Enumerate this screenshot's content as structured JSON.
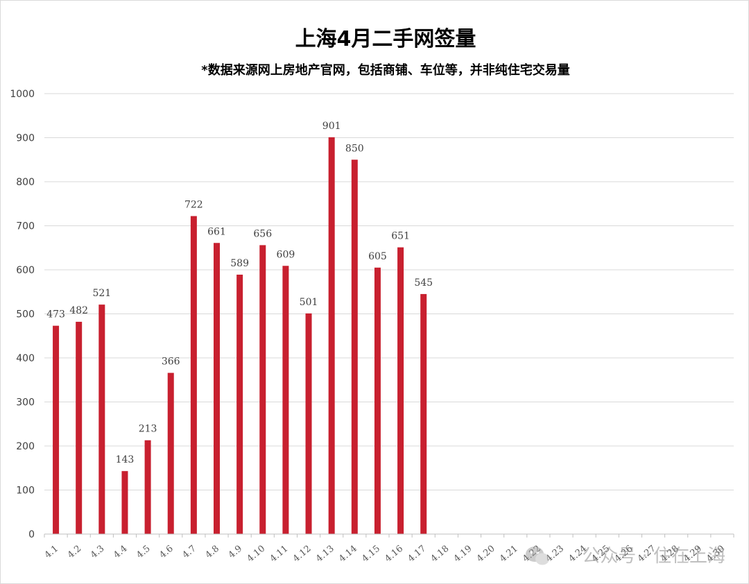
{
  "chart_data": {
    "type": "bar",
    "title": "上海4月二手网签量",
    "subtitle": "*数据来源网上房地产官网，包括商铺、车位等，并非纯住宅交易量",
    "xlabel": "",
    "ylabel": "",
    "ylim": [
      0,
      1000
    ],
    "yticks": [
      0,
      100,
      200,
      300,
      400,
      500,
      600,
      700,
      800,
      900,
      1000
    ],
    "grid": true,
    "legend": "none",
    "bar_color": "#c8202f",
    "categories": [
      "4.1",
      "4.2",
      "4.3",
      "4.4",
      "4.5",
      "4.6",
      "4.7",
      "4.8",
      "4.9",
      "4.10",
      "4.11",
      "4.12",
      "4.13",
      "4.14",
      "4.15",
      "4.16",
      "4.17",
      "4.18",
      "4.19",
      "4.20",
      "4.21",
      "4.22",
      "4.23",
      "4.24",
      "4.25",
      "4.26",
      "4.27",
      "4.28",
      "4.29",
      "4.30"
    ],
    "values": [
      473,
      482,
      521,
      143,
      213,
      366,
      722,
      661,
      589,
      656,
      609,
      501,
      901,
      850,
      605,
      651,
      545,
      null,
      null,
      null,
      null,
      null,
      null,
      null,
      null,
      null,
      null,
      null,
      null,
      null
    ]
  },
  "watermark": {
    "text": "公众号 · 住在上海",
    "icon": "wechat-icon"
  }
}
